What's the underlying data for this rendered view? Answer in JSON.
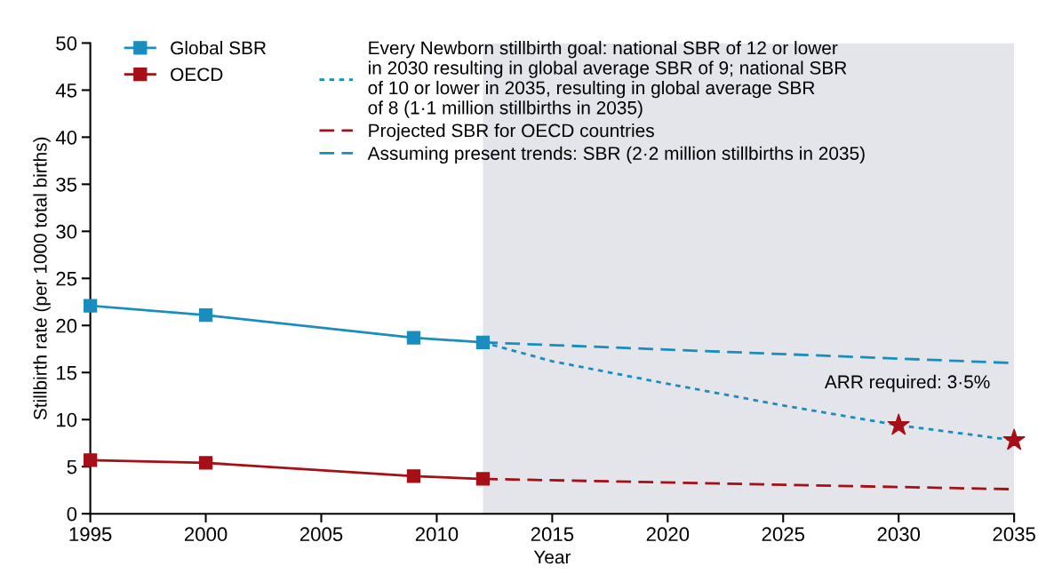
{
  "chart_data": {
    "type": "line",
    "xlabel": "Year",
    "ylabel": "Stillbirth rate (per 1000 total births)",
    "xlim": [
      1995,
      2035
    ],
    "xticks": [
      1995,
      2000,
      2005,
      2010,
      2015,
      2020,
      2025,
      2030,
      2035
    ],
    "ylim": [
      0,
      50
    ],
    "yticks": [
      0,
      5,
      10,
      15,
      20,
      25,
      30,
      35,
      40,
      45,
      50
    ],
    "grid": false,
    "legend": "top",
    "series": [
      {
        "name": "Global SBR",
        "color": "#1a8dbf",
        "marker": "square",
        "line_style": "solid",
        "x": [
          1995,
          2000,
          2009,
          2012
        ],
        "values": [
          22.1,
          21.1,
          18.7,
          18.2
        ]
      },
      {
        "name": "OECD",
        "color": "#a50f15",
        "marker": "square",
        "line_style": "solid",
        "x": [
          1995,
          2000,
          2009,
          2012
        ],
        "values": [
          5.7,
          5.4,
          4.0,
          3.7
        ]
      },
      {
        "name": "Every Newborn stillbirth goal: national SBR of 12 or lower\nin 2030 resulting in global average SBR of 9; national SBR\nof 10 or lower in 2035, resulting in global average SBR\nof 8 (1·1 million stillbirths in 2035)",
        "color": "#1a8dbf",
        "marker": "none",
        "line_style": "dotted",
        "x": [
          2012,
          2015,
          2020,
          2025,
          2030,
          2035
        ],
        "values": [
          18.2,
          16.2,
          13.8,
          11.5,
          9.4,
          7.8
        ]
      },
      {
        "name": "Projected SBR for OECD countries",
        "color": "#a50f15",
        "marker": "none",
        "line_style": "dashed",
        "x": [
          2012,
          2035
        ],
        "values": [
          3.7,
          2.6
        ]
      },
      {
        "name": "Assuming present trends: SBR (2·2 million stillbirths in 2035)",
        "color": "#1a8dbf",
        "marker": "none",
        "line_style": "dashed",
        "x": [
          2012,
          2035
        ],
        "values": [
          18.2,
          16.0
        ]
      },
      {
        "type": "scatter",
        "color": "#a50f15",
        "marker": "star",
        "x": [
          2030,
          2035
        ],
        "values": [
          9.4,
          7.8
        ]
      }
    ],
    "bands": [
      {
        "axis": "x",
        "from": 2012,
        "to": 2035,
        "color": "#e3e5ea"
      }
    ],
    "annotations": [
      {
        "text": "ARR required: 3·5%",
        "x": 2030,
        "y": 9.4
      }
    ]
  }
}
